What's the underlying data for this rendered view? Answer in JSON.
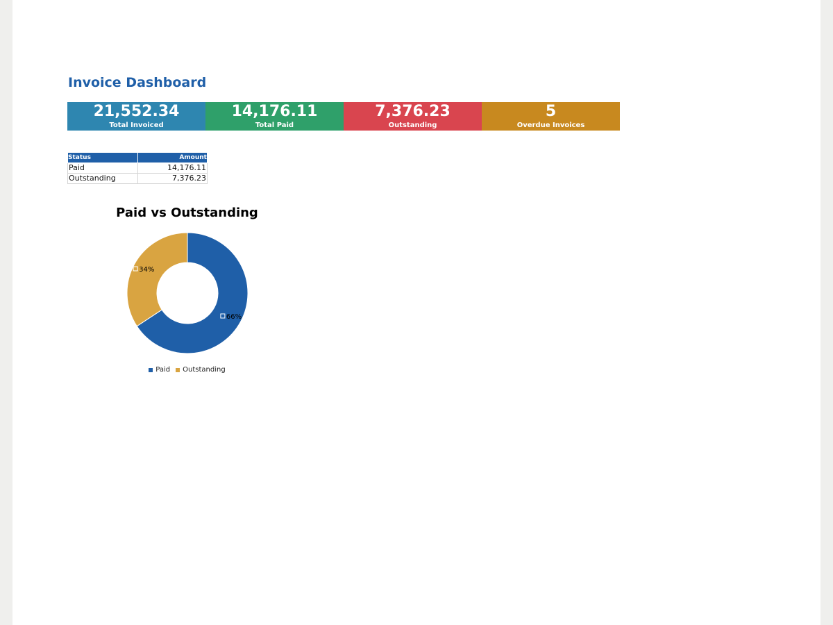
{
  "title": "Invoice Dashboard",
  "kpis": [
    {
      "value": "21,552.34",
      "label": "Total Invoiced",
      "color": "#2e86b0"
    },
    {
      "value": "14,176.11",
      "label": "Total Paid",
      "color": "#2fa06a"
    },
    {
      "value": "7,376.23",
      "label": "Outstanding",
      "color": "#d9454f"
    },
    {
      "value": "5",
      "label": "Overdue Invoices",
      "color": "#c8891f"
    }
  ],
  "table": {
    "headers": [
      "Status",
      "Amount"
    ],
    "rows": [
      [
        "Paid",
        "14,176.11"
      ],
      [
        "Outstanding",
        "7,376.23"
      ]
    ]
  },
  "chart_data": {
    "type": "pie",
    "donut": true,
    "title": "Paid vs Outstanding",
    "categories": [
      "Paid",
      "Outstanding"
    ],
    "values": [
      14176.11,
      7376.23
    ],
    "data_labels": [
      "66%",
      "34%"
    ],
    "colors": [
      "#1f5fa8",
      "#d9a441"
    ],
    "legend": "bottom"
  }
}
